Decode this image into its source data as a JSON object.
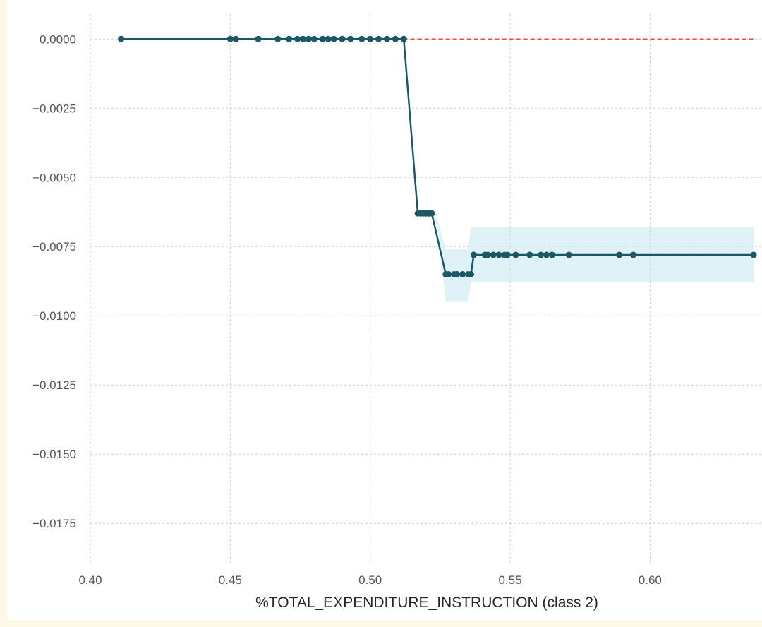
{
  "chart_data": {
    "type": "line",
    "title": "",
    "xlabel": "%TOTAL_EXPENDITURE_INSTRUCTION (class 2)",
    "ylabel": "",
    "xlim": [
      0.4,
      0.64
    ],
    "ylim": [
      -0.019,
      0.0009
    ],
    "x_ticks": [
      "0.40",
      "0.45",
      "0.50",
      "0.55",
      "0.60"
    ],
    "y_ticks": [
      "0.0000",
      "−0.0025",
      "−0.0050",
      "−0.0075",
      "−0.0100",
      "−0.0125",
      "−0.0150",
      "−0.0175"
    ],
    "grid": true,
    "colors": {
      "line": "#1a5866",
      "marker": "#1a5866",
      "band": "#bfe6f0",
      "reference": "#e8503a",
      "grid": "#cfcfcf"
    },
    "reference_line": {
      "y": 0,
      "style": "dashed"
    },
    "series": [
      {
        "x": [
          0.411,
          0.45,
          0.452,
          0.46,
          0.467,
          0.471,
          0.474,
          0.476,
          0.478,
          0.48,
          0.483,
          0.485,
          0.487,
          0.49,
          0.493,
          0.497,
          0.5,
          0.503,
          0.506,
          0.509,
          0.512,
          0.517,
          0.518,
          0.519,
          0.52,
          0.521,
          0.522,
          0.527,
          0.528,
          0.53,
          0.531,
          0.533,
          0.535,
          0.536,
          0.537,
          0.541,
          0.542,
          0.544,
          0.546,
          0.548,
          0.549,
          0.552,
          0.557,
          0.561,
          0.563,
          0.565,
          0.571,
          0.589,
          0.594,
          0.637
        ],
        "y": [
          0.0,
          0.0,
          0.0,
          0.0,
          0.0,
          0.0,
          0.0,
          0.0,
          0.0,
          0.0,
          0.0,
          0.0,
          0.0,
          0.0,
          0.0,
          0.0,
          0.0,
          0.0,
          0.0,
          0.0,
          0.0,
          -0.0063,
          -0.0063,
          -0.0063,
          -0.0063,
          -0.0063,
          -0.0063,
          -0.0085,
          -0.0085,
          -0.0085,
          -0.0085,
          -0.0085,
          -0.0085,
          -0.0085,
          -0.0078,
          -0.0078,
          -0.0078,
          -0.0078,
          -0.0078,
          -0.0078,
          -0.0078,
          -0.0078,
          -0.0078,
          -0.0078,
          -0.0078,
          -0.0078,
          -0.0078,
          -0.0078,
          -0.0078,
          -0.0078
        ]
      }
    ],
    "band": {
      "x": [
        0.411,
        0.512,
        0.522,
        0.524,
        0.527,
        0.535,
        0.536,
        0.637
      ],
      "upper": [
        0.0,
        0.0,
        -0.0063,
        -0.0065,
        -0.0076,
        -0.0076,
        -0.0068,
        -0.0068
      ],
      "lower": [
        0.0,
        0.0,
        -0.0063,
        -0.0067,
        -0.0095,
        -0.0095,
        -0.0088,
        -0.0088
      ]
    }
  }
}
